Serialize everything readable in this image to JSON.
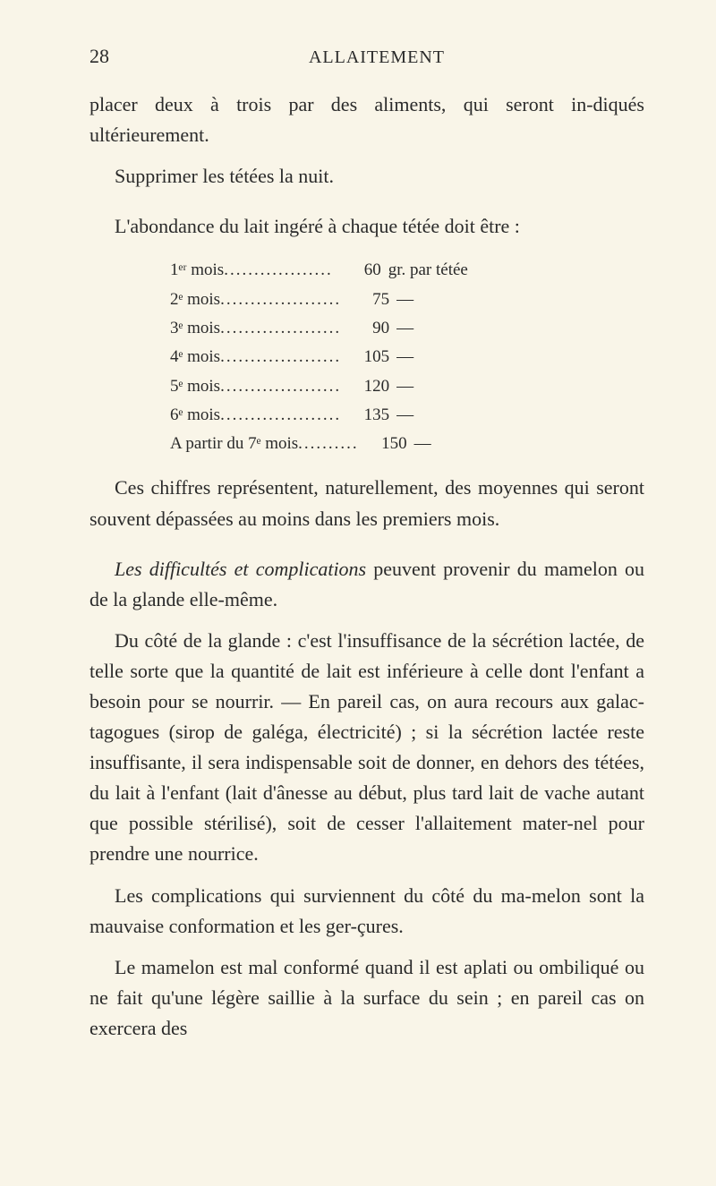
{
  "page_number": "28",
  "header_title": "ALLAITEMENT",
  "para1": "placer deux à trois par des aliments, qui seront in-diqués ultérieurement.",
  "para2": "Supprimer les tétées la nuit.",
  "para3": "L'abondance du lait ingéré à chaque tétée doit être :",
  "table": [
    {
      "label": "1ᵉʳ mois",
      "dots": "..................",
      "value": "60",
      "suffix": "gr. par tétée"
    },
    {
      "label": "2ᵉ mois",
      "dots": "....................",
      "value": "75",
      "suffix": "—"
    },
    {
      "label": "3ᵉ mois",
      "dots": "....................",
      "value": "90",
      "suffix": "—"
    },
    {
      "label": "4ᵉ mois",
      "dots": "....................",
      "value": "105",
      "suffix": "—"
    },
    {
      "label": "5ᵉ mois",
      "dots": "....................",
      "value": "120",
      "suffix": "—"
    },
    {
      "label": "6ᵉ mois",
      "dots": "....................",
      "value": "135",
      "suffix": "—"
    },
    {
      "label": "A partir du 7ᵉ mois",
      "dots": "..........",
      "value": "150",
      "suffix": "—"
    }
  ],
  "para4": "Ces chiffres représentent, naturellement, des moyennes qui seront souvent dépassées au moins dans les premiers mois.",
  "para5_lead_italic": "Les difficultés et complications",
  "para5_rest": " peuvent provenir du mamelon ou de la glande elle-même.",
  "para6": "Du côté de la glande : c'est l'insuffisance de la sécrétion lactée, de telle sorte que la quantité de lait est inférieure à celle dont l'enfant a besoin pour se nourrir. — En pareil cas, on aura recours aux galac-tagogues (sirop de galéga, électricité) ; si la sécrétion lactée reste insuffisante, il sera indispensable soit de donner, en dehors des tétées, du lait à l'enfant (lait d'ânesse au début, plus tard lait de vache autant que possible stérilisé), soit de cesser l'allaitement mater-nel pour prendre une nourrice.",
  "para7": "Les complications qui surviennent du côté du ma-melon sont la mauvaise conformation et les ger-çures.",
  "para8": "Le mamelon est mal conformé quand il est aplati ou ombiliqué ou ne fait qu'une légère saillie à la surface du sein ; en pareil cas on exercera des"
}
